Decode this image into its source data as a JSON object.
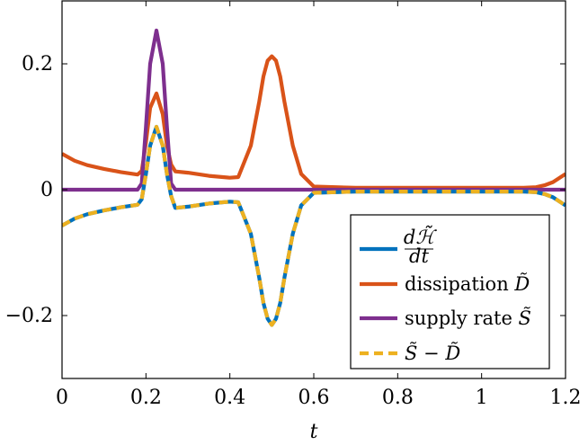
{
  "chart_data": {
    "type": "line",
    "title": "",
    "xlabel": "t",
    "ylabel": "",
    "xlim": [
      0,
      1.2
    ],
    "ylim": [
      -0.3,
      0.3
    ],
    "xticks": [
      0,
      0.2,
      0.4,
      0.6,
      0.8,
      1,
      1.2
    ],
    "xtick_labels": [
      "0",
      "0.2",
      "0.4",
      "0.6",
      "0.8",
      "1",
      "1.2"
    ],
    "yticks": [
      -0.2,
      0,
      0.2
    ],
    "ytick_labels": [
      "−0.2",
      "0",
      "0.2"
    ],
    "grid": false,
    "legend_position": "bottom-right",
    "series": [
      {
        "name": "dH/dt",
        "color": "#0072BD",
        "style": "solid",
        "x": [
          0,
          0.03,
          0.06,
          0.1,
          0.14,
          0.18,
          0.19,
          0.2,
          0.21,
          0.225,
          0.24,
          0.25,
          0.26,
          0.27,
          0.3,
          0.35,
          0.4,
          0.42,
          0.45,
          0.47,
          0.48,
          0.49,
          0.5,
          0.51,
          0.52,
          0.53,
          0.55,
          0.57,
          0.6,
          0.7,
          0.8,
          0.9,
          1.0,
          1.05,
          1.1,
          1.13,
          1.15,
          1.17,
          1.2
        ],
        "values": [
          -0.057,
          -0.046,
          -0.039,
          -0.033,
          -0.028,
          -0.024,
          -0.015,
          0.025,
          0.07,
          0.1,
          0.07,
          0.025,
          -0.01,
          -0.029,
          -0.027,
          -0.022,
          -0.019,
          -0.02,
          -0.07,
          -0.14,
          -0.18,
          -0.205,
          -0.215,
          -0.205,
          -0.18,
          -0.14,
          -0.07,
          -0.025,
          -0.005,
          -0.003,
          -0.003,
          -0.003,
          -0.003,
          -0.003,
          -0.003,
          -0.004,
          -0.007,
          -0.012,
          -0.025
        ]
      },
      {
        "name": "dissipation D̃",
        "color": "#D95319",
        "style": "solid",
        "x": [
          0,
          0.03,
          0.06,
          0.1,
          0.14,
          0.18,
          0.19,
          0.2,
          0.21,
          0.225,
          0.24,
          0.25,
          0.26,
          0.27,
          0.3,
          0.35,
          0.4,
          0.42,
          0.45,
          0.47,
          0.48,
          0.49,
          0.5,
          0.51,
          0.52,
          0.53,
          0.55,
          0.57,
          0.6,
          0.7,
          0.8,
          0.9,
          1.0,
          1.05,
          1.1,
          1.13,
          1.15,
          1.17,
          1.2
        ],
        "values": [
          0.057,
          0.046,
          0.039,
          0.033,
          0.028,
          0.024,
          0.03,
          0.075,
          0.13,
          0.153,
          0.12,
          0.07,
          0.04,
          0.029,
          0.027,
          0.022,
          0.019,
          0.02,
          0.07,
          0.14,
          0.18,
          0.205,
          0.212,
          0.205,
          0.18,
          0.14,
          0.07,
          0.025,
          0.005,
          0.003,
          0.003,
          0.003,
          0.003,
          0.003,
          0.003,
          0.004,
          0.007,
          0.012,
          0.025
        ]
      },
      {
        "name": "supply rate S̃",
        "color": "#7E2F8E",
        "style": "solid",
        "x": [
          0,
          0.18,
          0.19,
          0.2,
          0.21,
          0.225,
          0.24,
          0.25,
          0.26,
          0.27,
          0.4,
          0.6,
          0.8,
          1.0,
          1.2
        ],
        "values": [
          0,
          0,
          0.01,
          0.1,
          0.2,
          0.253,
          0.2,
          0.1,
          0.01,
          0,
          0,
          0,
          0,
          0,
          0
        ]
      },
      {
        "name": "S̃ − D̃",
        "color": "#EDB120",
        "style": "dashed",
        "x": [
          0,
          0.03,
          0.06,
          0.1,
          0.14,
          0.18,
          0.19,
          0.2,
          0.21,
          0.225,
          0.24,
          0.25,
          0.26,
          0.27,
          0.3,
          0.35,
          0.4,
          0.42,
          0.45,
          0.47,
          0.48,
          0.49,
          0.5,
          0.51,
          0.52,
          0.53,
          0.55,
          0.57,
          0.6,
          0.7,
          0.8,
          0.9,
          1.0,
          1.05,
          1.1,
          1.13,
          1.15,
          1.17,
          1.2
        ],
        "values": [
          -0.057,
          -0.046,
          -0.039,
          -0.033,
          -0.028,
          -0.024,
          -0.015,
          0.025,
          0.07,
          0.1,
          0.07,
          0.025,
          -0.01,
          -0.029,
          -0.027,
          -0.022,
          -0.019,
          -0.02,
          -0.07,
          -0.14,
          -0.18,
          -0.205,
          -0.215,
          -0.205,
          -0.18,
          -0.14,
          -0.07,
          -0.025,
          -0.005,
          -0.003,
          -0.003,
          -0.003,
          -0.003,
          -0.003,
          -0.003,
          -0.004,
          -0.007,
          -0.012,
          -0.025
        ]
      }
    ],
    "legend": [
      {
        "kind": "fraction",
        "numerator": "dℋ̃",
        "denominator": "dt"
      },
      {
        "kind": "text",
        "text": "dissipation ",
        "math": "D̃"
      },
      {
        "kind": "text",
        "text": "supply rate ",
        "math": "S̃"
      },
      {
        "kind": "math",
        "math": "S̃ − D̃"
      }
    ]
  }
}
